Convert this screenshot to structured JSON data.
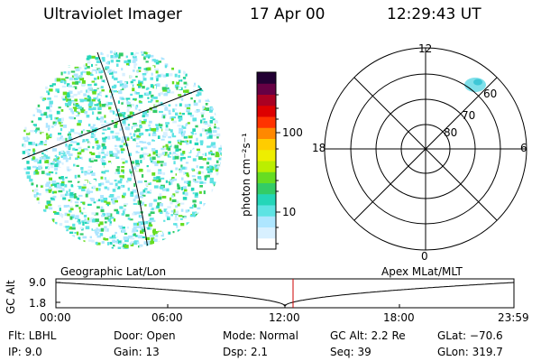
{
  "header": {
    "instrument": "Ultraviolet Imager",
    "date": "17 Apr 00",
    "time": "12:29:43 UT"
  },
  "colorbar": {
    "unit_label": "photon cm⁻²s⁻¹",
    "ticks": [
      "100",
      "10"
    ],
    "colors": [
      "#ffffff",
      "#d8f0ff",
      "#aee6ff",
      "#5ee3e3",
      "#24d6b8",
      "#33cc66",
      "#66dd22",
      "#bbee00",
      "#eeee00",
      "#ffcc00",
      "#ff8800",
      "#ff3300",
      "#dd0000",
      "#aa0022",
      "#660044",
      "#220033"
    ]
  },
  "left_panel": {
    "caption": "Geographic Lat/Lon"
  },
  "polar_plot": {
    "caption": "Apex MLat/MLT",
    "mlt_labels": {
      "top": "12",
      "left": "18",
      "right": "6",
      "bottom": "0"
    },
    "lat_labels": [
      "60",
      "70",
      "80"
    ]
  },
  "timeline": {
    "axis_label": "GC Alt",
    "y_ticks": [
      "9.0",
      "1.8"
    ],
    "x_ticks": [
      "00:00",
      "06:00",
      "12:00",
      "18:00",
      "23:59"
    ],
    "marker_color": "#cc0000"
  },
  "info": {
    "flt": "Flt:  LBHL",
    "ip": "IP:   9.0",
    "door": "Door:  Open",
    "gain": "Gain:  13",
    "mode": "Mode:  Normal",
    "dsp": "Dsp:      2.1",
    "gcalt": "GC Alt:  2.2 Re",
    "seq": "Seq:  39",
    "glat": "GLat:  −70.6",
    "glon": "GLon:  319.7"
  }
}
